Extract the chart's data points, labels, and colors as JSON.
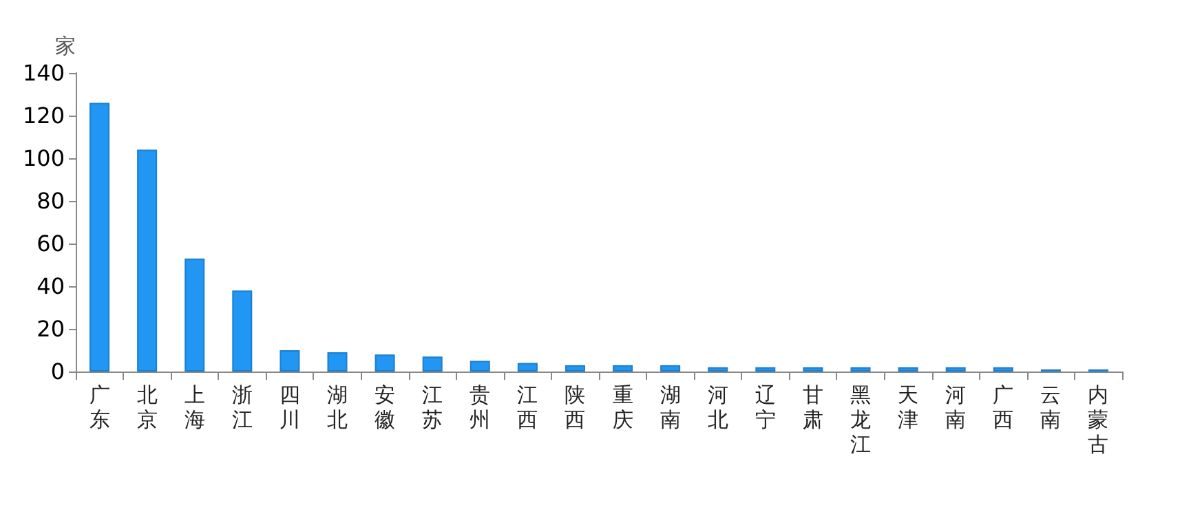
{
  "chart_data": {
    "type": "bar",
    "ylabel": "家",
    "categories": [
      "广东",
      "北京",
      "上海",
      "浙江",
      "四川",
      "湖北",
      "安徽",
      "江苏",
      "贵州",
      "江西",
      "陕西",
      "重庆",
      "湖南",
      "河北",
      "辽宁",
      "甘肃",
      "黑龙江",
      "天津",
      "河南",
      "广西",
      "云南",
      "内蒙古"
    ],
    "values": [
      126,
      104,
      53,
      38,
      10,
      9,
      8,
      7,
      5,
      4,
      3,
      3,
      3,
      2,
      2,
      2,
      2,
      2,
      2,
      2,
      1,
      1
    ],
    "color": "#2196f3",
    "ylim": [
      0,
      140
    ],
    "yticks": [
      0,
      20,
      40,
      60,
      80,
      100,
      120,
      140
    ],
    "grid": false
  }
}
